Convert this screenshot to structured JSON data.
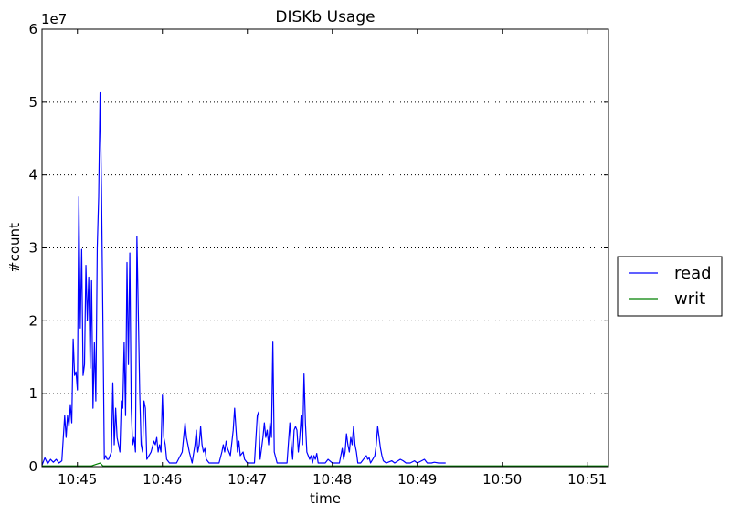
{
  "chart_data": {
    "type": "line",
    "title": "DISKb Usage",
    "xlabel": "time",
    "ylabel": "#count",
    "y_multiplier_label": "1e7",
    "y_scale_note": "values in units of 1e7 counts",
    "xlim": [
      "10:44:35",
      "10:51:15"
    ],
    "ylim": [
      0,
      6
    ],
    "yticks": [
      "0",
      "1",
      "2",
      "3",
      "4",
      "5",
      "6"
    ],
    "xticks": [
      "10:45",
      "10:46",
      "10:47",
      "10:48",
      "10:49",
      "10:50",
      "10:51"
    ],
    "grid": "horizontal dotted",
    "legend_position": "right, outside plot",
    "series": [
      {
        "name": "read",
        "color": "#0000ff",
        "points": [
          [
            "10:44:35",
            0.02
          ],
          [
            "10:44:37",
            0.12
          ],
          [
            "10:44:39",
            0.04
          ],
          [
            "10:44:41",
            0.1
          ],
          [
            "10:44:43",
            0.06
          ],
          [
            "10:44:45",
            0.1
          ],
          [
            "10:44:47",
            0.05
          ],
          [
            "10:44:49",
            0.08
          ],
          [
            "10:44:51",
            0.7
          ],
          [
            "10:44:52",
            0.4
          ],
          [
            "10:44:53",
            0.7
          ],
          [
            "10:44:54",
            0.55
          ],
          [
            "10:44:55",
            0.85
          ],
          [
            "10:44:56",
            0.6
          ],
          [
            "10:44:57",
            1.75
          ],
          [
            "10:44:58",
            1.25
          ],
          [
            "10:44:59",
            1.3
          ],
          [
            "10:45:00",
            1.05
          ],
          [
            "10:45:01",
            3.7
          ],
          [
            "10:45:02",
            1.9
          ],
          [
            "10:45:03",
            2.98
          ],
          [
            "10:45:04",
            1.25
          ],
          [
            "10:45:05",
            1.4
          ],
          [
            "10:45:06",
            2.76
          ],
          [
            "10:45:07",
            2.0
          ],
          [
            "10:45:08",
            2.6
          ],
          [
            "10:45:09",
            1.35
          ],
          [
            "10:45:10",
            2.55
          ],
          [
            "10:45:11",
            0.8
          ],
          [
            "10:45:12",
            1.7
          ],
          [
            "10:45:13",
            0.9
          ],
          [
            "10:45:14",
            3.0
          ],
          [
            "10:45:15",
            3.7
          ],
          [
            "10:45:16",
            5.13
          ],
          [
            "10:45:17",
            3.8
          ],
          [
            "10:45:18",
            2.0
          ],
          [
            "10:45:19",
            0.1
          ],
          [
            "10:45:20",
            0.15
          ],
          [
            "10:45:21",
            0.1
          ],
          [
            "10:45:22",
            0.1
          ],
          [
            "10:45:24",
            0.2
          ],
          [
            "10:45:25",
            1.15
          ],
          [
            "10:45:26",
            0.3
          ],
          [
            "10:45:27",
            0.8
          ],
          [
            "10:45:28",
            0.4
          ],
          [
            "10:45:29",
            0.3
          ],
          [
            "10:45:30",
            0.2
          ],
          [
            "10:45:31",
            0.9
          ],
          [
            "10:45:32",
            0.8
          ],
          [
            "10:45:33",
            1.7
          ],
          [
            "10:45:34",
            0.7
          ],
          [
            "10:45:35",
            2.8
          ],
          [
            "10:45:36",
            1.4
          ],
          [
            "10:45:37",
            2.93
          ],
          [
            "10:45:38",
            0.8
          ],
          [
            "10:45:39",
            0.3
          ],
          [
            "10:45:40",
            0.4
          ],
          [
            "10:45:41",
            0.2
          ],
          [
            "10:45:42",
            3.16
          ],
          [
            "10:45:43",
            2.1
          ],
          [
            "10:45:44",
            1.0
          ],
          [
            "10:45:45",
            0.3
          ],
          [
            "10:45:46",
            0.2
          ],
          [
            "10:45:47",
            0.9
          ],
          [
            "10:45:48",
            0.8
          ],
          [
            "10:45:49",
            0.1
          ],
          [
            "10:45:52",
            0.2
          ],
          [
            "10:45:54",
            0.35
          ],
          [
            "10:45:55",
            0.3
          ],
          [
            "10:45:56",
            0.4
          ],
          [
            "10:45:57",
            0.2
          ],
          [
            "10:45:58",
            0.3
          ],
          [
            "10:45:59",
            0.2
          ],
          [
            "10:46:00",
            0.98
          ],
          [
            "10:46:01",
            0.4
          ],
          [
            "10:46:02",
            0.3
          ],
          [
            "10:46:03",
            0.1
          ],
          [
            "10:46:05",
            0.05
          ],
          [
            "10:46:10",
            0.05
          ],
          [
            "10:46:14",
            0.2
          ],
          [
            "10:46:15",
            0.4
          ],
          [
            "10:46:16",
            0.6
          ],
          [
            "10:46:17",
            0.4
          ],
          [
            "10:46:18",
            0.3
          ],
          [
            "10:46:19",
            0.2
          ],
          [
            "10:46:21",
            0.05
          ],
          [
            "10:46:23",
            0.3
          ],
          [
            "10:46:24",
            0.5
          ],
          [
            "10:46:25",
            0.2
          ],
          [
            "10:46:26",
            0.3
          ],
          [
            "10:46:27",
            0.55
          ],
          [
            "10:46:28",
            0.3
          ],
          [
            "10:46:29",
            0.2
          ],
          [
            "10:46:30",
            0.25
          ],
          [
            "10:46:31",
            0.1
          ],
          [
            "10:46:33",
            0.05
          ],
          [
            "10:46:40",
            0.05
          ],
          [
            "10:46:42",
            0.2
          ],
          [
            "10:46:43",
            0.3
          ],
          [
            "10:46:44",
            0.2
          ],
          [
            "10:46:45",
            0.35
          ],
          [
            "10:46:46",
            0.25
          ],
          [
            "10:46:48",
            0.15
          ],
          [
            "10:46:50",
            0.5
          ],
          [
            "10:46:51",
            0.8
          ],
          [
            "10:46:52",
            0.5
          ],
          [
            "10:46:53",
            0.2
          ],
          [
            "10:46:54",
            0.35
          ],
          [
            "10:46:55",
            0.15
          ],
          [
            "10:46:57",
            0.2
          ],
          [
            "10:46:58",
            0.1
          ],
          [
            "10:47:00",
            0.05
          ],
          [
            "10:47:05",
            0.05
          ],
          [
            "10:47:07",
            0.7
          ],
          [
            "10:47:08",
            0.75
          ],
          [
            "10:47:09",
            0.1
          ],
          [
            "10:47:11",
            0.4
          ],
          [
            "10:47:12",
            0.6
          ],
          [
            "10:47:13",
            0.4
          ],
          [
            "10:47:14",
            0.5
          ],
          [
            "10:47:15",
            0.3
          ],
          [
            "10:47:16",
            0.6
          ],
          [
            "10:47:17",
            0.4
          ],
          [
            "10:47:18",
            1.72
          ],
          [
            "10:47:19",
            0.2
          ],
          [
            "10:47:21",
            0.05
          ],
          [
            "10:47:28",
            0.05
          ],
          [
            "10:47:30",
            0.6
          ],
          [
            "10:47:31",
            0.3
          ],
          [
            "10:47:32",
            0.1
          ],
          [
            "10:47:33",
            0.5
          ],
          [
            "10:47:34",
            0.55
          ],
          [
            "10:47:35",
            0.5
          ],
          [
            "10:47:36",
            0.2
          ],
          [
            "10:47:37",
            0.4
          ],
          [
            "10:47:38",
            0.7
          ],
          [
            "10:47:39",
            0.3
          ],
          [
            "10:47:40",
            1.27
          ],
          [
            "10:47:41",
            0.6
          ],
          [
            "10:47:42",
            0.2
          ],
          [
            "10:47:43",
            0.15
          ],
          [
            "10:47:44",
            0.1
          ],
          [
            "10:47:45",
            0.15
          ],
          [
            "10:47:46",
            0.05
          ],
          [
            "10:47:47",
            0.15
          ],
          [
            "10:47:48",
            0.1
          ],
          [
            "10:47:49",
            0.18
          ],
          [
            "10:47:50",
            0.05
          ],
          [
            "10:47:55",
            0.05
          ],
          [
            "10:47:57",
            0.1
          ],
          [
            "10:48:00",
            0.05
          ],
          [
            "10:48:05",
            0.05
          ],
          [
            "10:48:07",
            0.25
          ],
          [
            "10:48:08",
            0.1
          ],
          [
            "10:48:09",
            0.2
          ],
          [
            "10:48:10",
            0.45
          ],
          [
            "10:48:11",
            0.3
          ],
          [
            "10:48:12",
            0.2
          ],
          [
            "10:48:13",
            0.4
          ],
          [
            "10:48:14",
            0.3
          ],
          [
            "10:48:15",
            0.55
          ],
          [
            "10:48:16",
            0.3
          ],
          [
            "10:48:17",
            0.2
          ],
          [
            "10:48:18",
            0.05
          ],
          [
            "10:48:20",
            0.05
          ],
          [
            "10:48:22",
            0.1
          ],
          [
            "10:48:24",
            0.15
          ],
          [
            "10:48:25",
            0.1
          ],
          [
            "10:48:26",
            0.12
          ],
          [
            "10:48:27",
            0.05
          ],
          [
            "10:48:30",
            0.15
          ],
          [
            "10:48:31",
            0.3
          ],
          [
            "10:48:32",
            0.55
          ],
          [
            "10:48:33",
            0.4
          ],
          [
            "10:48:34",
            0.25
          ],
          [
            "10:48:35",
            0.15
          ],
          [
            "10:48:36",
            0.08
          ],
          [
            "10:48:38",
            0.05
          ],
          [
            "10:48:42",
            0.08
          ],
          [
            "10:48:44",
            0.05
          ],
          [
            "10:48:48",
            0.1
          ],
          [
            "10:48:50",
            0.08
          ],
          [
            "10:48:52",
            0.05
          ],
          [
            "10:48:55",
            0.05
          ],
          [
            "10:48:58",
            0.08
          ],
          [
            "10:49:00",
            0.05
          ],
          [
            "10:49:03",
            0.08
          ],
          [
            "10:49:05",
            0.1
          ],
          [
            "10:49:07",
            0.05
          ],
          [
            "10:49:10",
            0.05
          ],
          [
            "10:49:12",
            0.06
          ],
          [
            "10:49:15",
            0.05
          ],
          [
            "10:49:20",
            0.05
          ]
        ]
      },
      {
        "name": "writ",
        "color": "#008000",
        "points": [
          [
            "10:44:35",
            0.01
          ],
          [
            "10:45:10",
            0.01
          ],
          [
            "10:45:16",
            0.05
          ],
          [
            "10:45:18",
            0.01
          ],
          [
            "10:51:15",
            0.01
          ]
        ]
      }
    ]
  }
}
